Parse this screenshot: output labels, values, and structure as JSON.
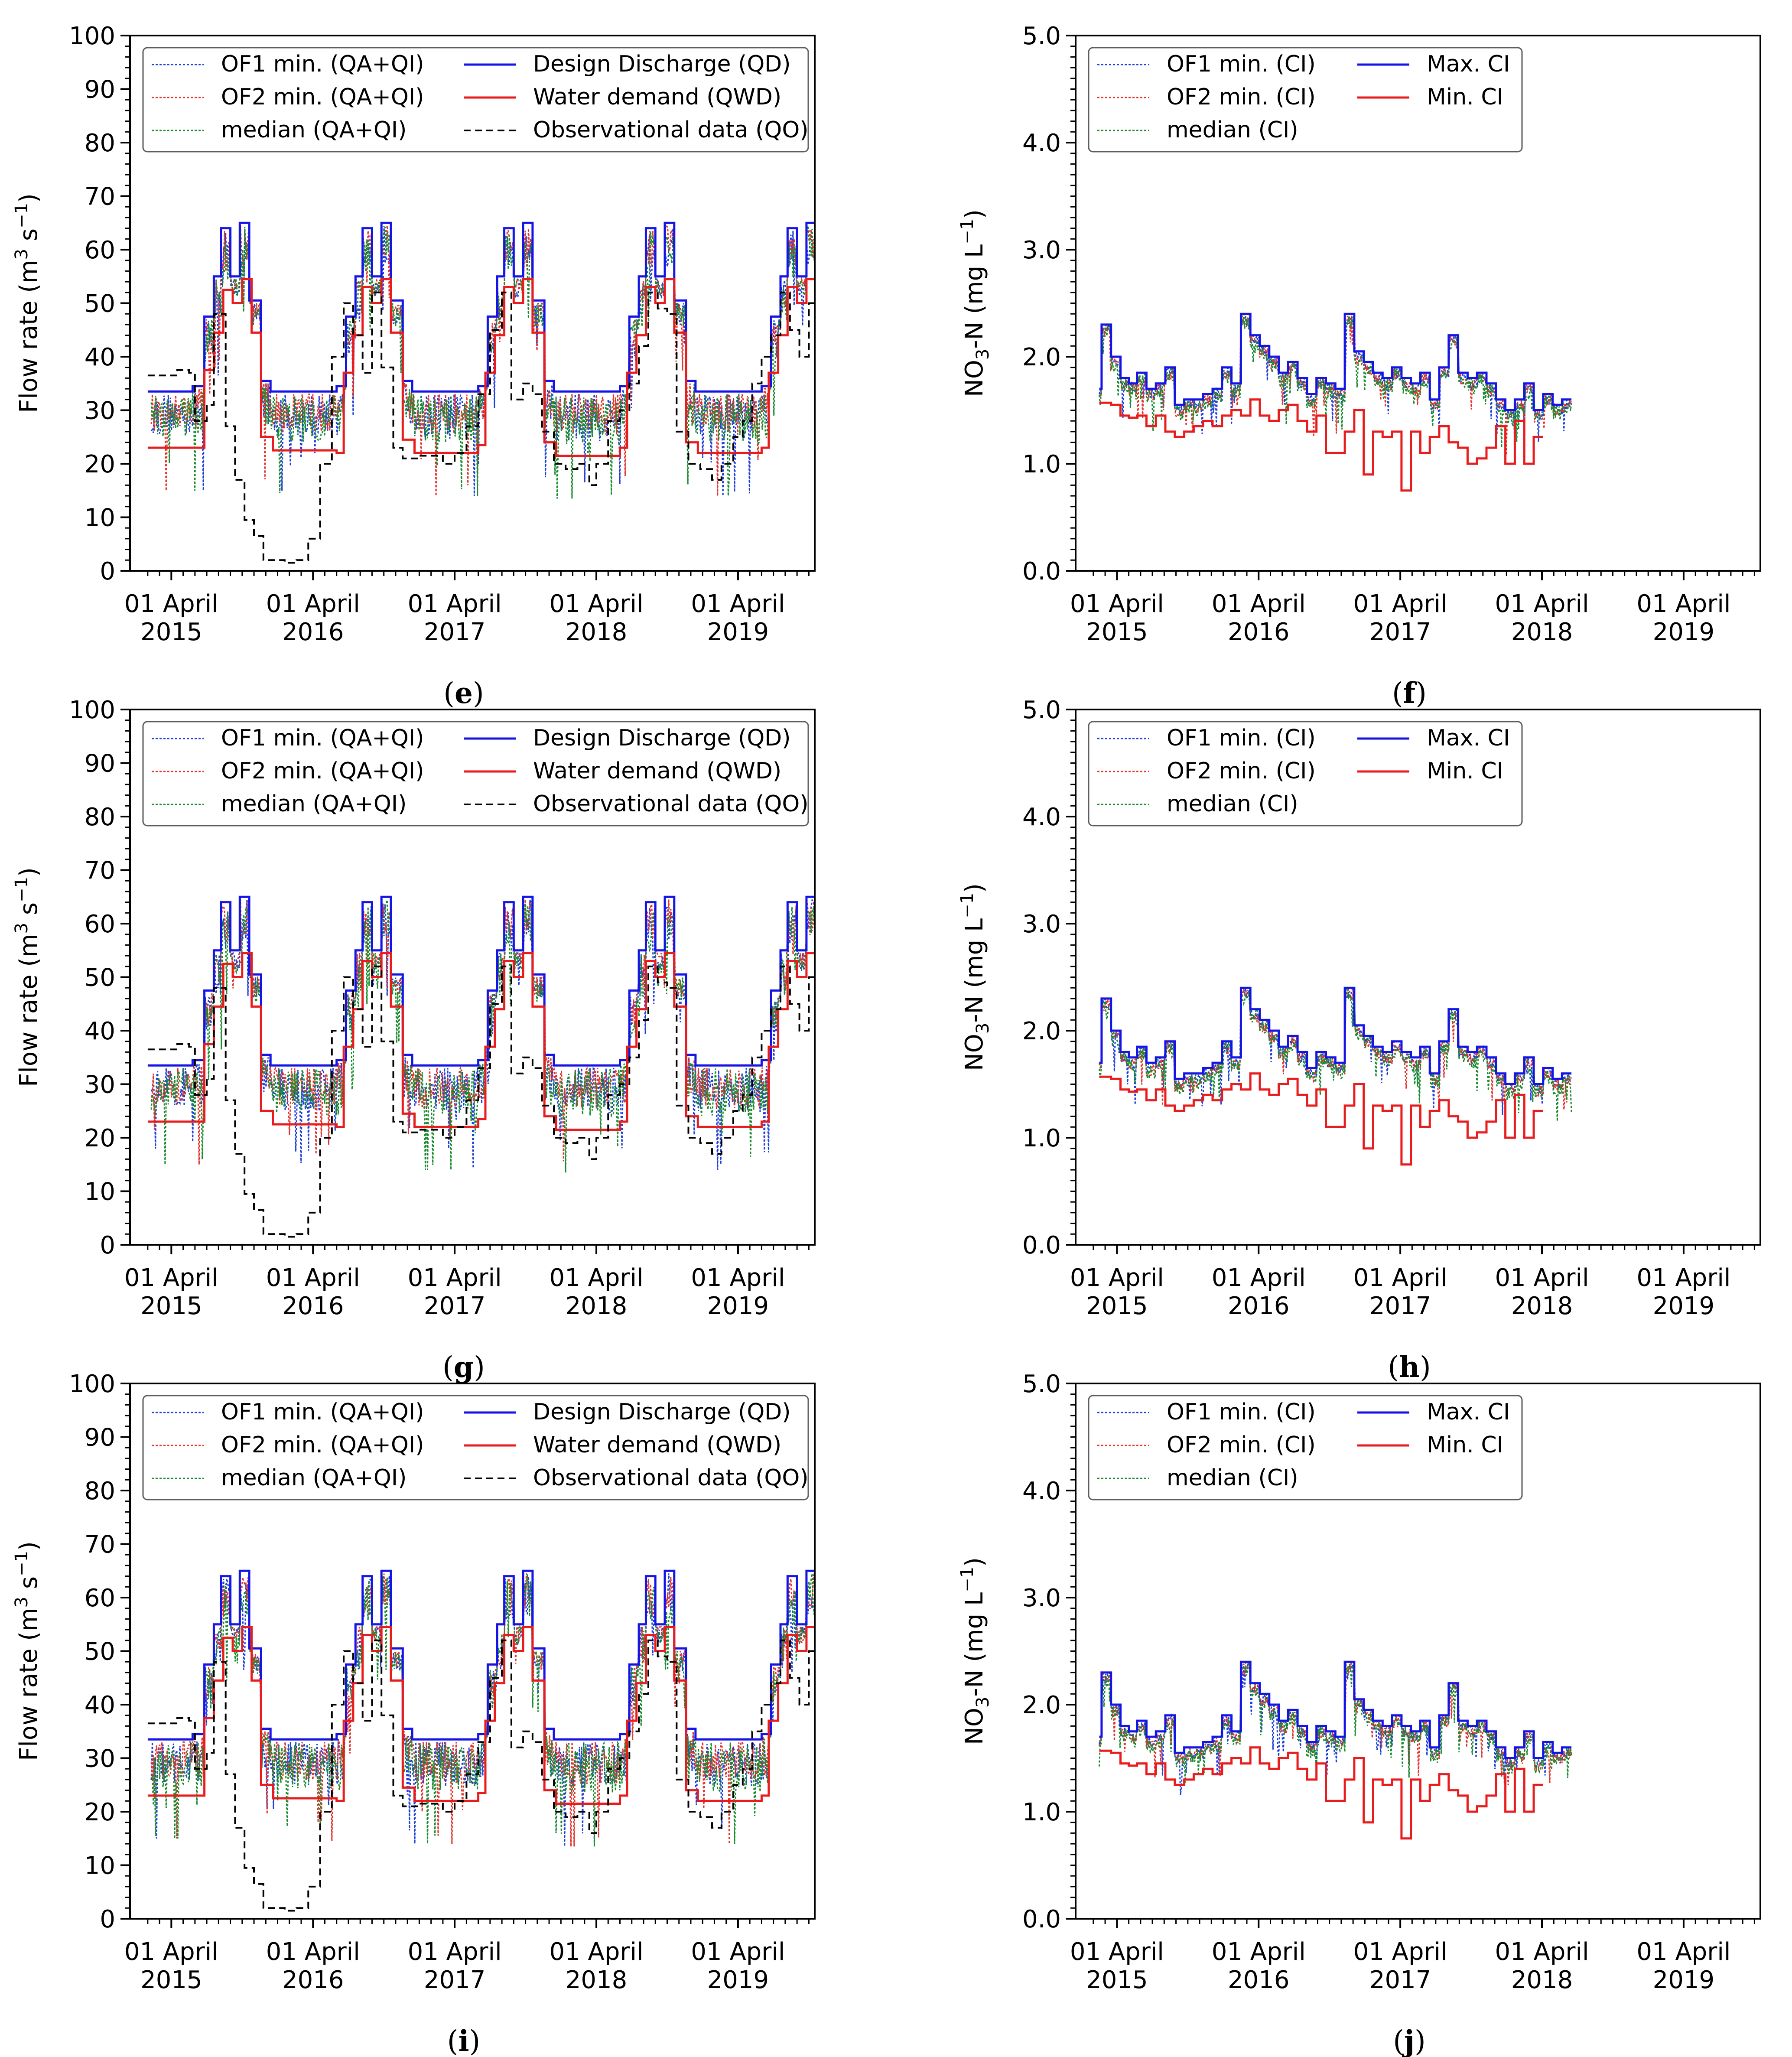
{
  "figure": {
    "colors": {
      "ofa": "#1f3fd8",
      "ofb": "#e0352e",
      "median": "#1a8c2e",
      "design": "#1414e6",
      "demand": "#e81c1c",
      "observed": "#000000"
    },
    "flow_labels": {
      "of1": "OF1 min. (QA+QI)",
      "of2": "OF2 min. (QA+QI)",
      "median": "median (QA+QI)",
      "design": "Design Discharge (QD)",
      "demand": "Water demand (QWD)",
      "observed": "Observational data (QO)"
    },
    "ci_labels": {
      "of1": "OF1 min. (CI)",
      "of2": "OF2 min. (CI)",
      "median": "median (CI)",
      "max": "Max. CI",
      "min": "Min. CI"
    }
  },
  "chart_data": [
    {
      "panel": "e",
      "type": "line",
      "kind": "flow",
      "caption": "e",
      "ylabel_main": "Flow rate (m",
      "ylabel_sup1": "3",
      "ylabel_mid": " s",
      "ylabel_sup2": "−1",
      "ylabel_end": ")",
      "ylim": [
        0,
        100
      ],
      "yticks": [
        "0",
        "10",
        "20",
        "30",
        "40",
        "50",
        "60",
        "70",
        "80",
        "90",
        "100"
      ],
      "xtick_month": "01 April",
      "xtick_years": [
        "2015",
        "2016",
        "2017",
        "2018",
        "2019"
      ],
      "xlim_months": [
        -3.5,
        54.5
      ],
      "design_steps": [
        [
          -2,
          33.5
        ],
        [
          1.8,
          34.5
        ],
        [
          2.8,
          47.5
        ],
        [
          3.6,
          55
        ],
        [
          4.2,
          64
        ],
        [
          5,
          55
        ],
        [
          5.8,
          65
        ],
        [
          6.6,
          50.5
        ],
        [
          7.6,
          35.5
        ],
        [
          8.4,
          33.5
        ],
        [
          14,
          34.5
        ],
        [
          14.8,
          47.5
        ],
        [
          15.6,
          55
        ],
        [
          16.2,
          64
        ],
        [
          17,
          55
        ],
        [
          17.8,
          65
        ],
        [
          18.6,
          50.5
        ],
        [
          19.6,
          35.5
        ],
        [
          20.4,
          33.5
        ],
        [
          26,
          34.5
        ],
        [
          26.8,
          47.5
        ],
        [
          27.6,
          55
        ],
        [
          28.2,
          64
        ],
        [
          29,
          55
        ],
        [
          29.8,
          65
        ],
        [
          30.6,
          50.5
        ],
        [
          31.6,
          35.5
        ],
        [
          32.4,
          33.5
        ],
        [
          38,
          34.5
        ],
        [
          38.8,
          47.5
        ],
        [
          39.6,
          55
        ],
        [
          40.2,
          64
        ],
        [
          41,
          55
        ],
        [
          41.8,
          65
        ],
        [
          42.6,
          50.5
        ],
        [
          43.6,
          35.5
        ],
        [
          44.4,
          33.5
        ],
        [
          50,
          34.5
        ],
        [
          50.8,
          47.5
        ],
        [
          51.6,
          55
        ],
        [
          52.2,
          64
        ],
        [
          53,
          55
        ],
        [
          53.8,
          65
        ],
        [
          54.6,
          50.5
        ],
        [
          55.6,
          35.5
        ],
        [
          56.4,
          33.5
        ],
        [
          64,
          33.5
        ]
      ],
      "demand_steps": [
        [
          -2,
          23
        ],
        [
          2.8,
          37.5
        ],
        [
          3.6,
          44.5
        ],
        [
          4.4,
          52.5
        ],
        [
          5.2,
          50
        ],
        [
          6,
          54.5
        ],
        [
          6.8,
          44.5
        ],
        [
          7.6,
          25
        ],
        [
          8.6,
          22.5
        ],
        [
          14,
          22
        ],
        [
          14.6,
          37
        ],
        [
          15.4,
          44
        ],
        [
          16.2,
          53
        ],
        [
          17,
          50
        ],
        [
          17.8,
          54.5
        ],
        [
          18.6,
          44.5
        ],
        [
          19.6,
          24.5
        ],
        [
          20.6,
          22
        ],
        [
          26,
          23.5
        ],
        [
          26.6,
          37
        ],
        [
          27.4,
          44
        ],
        [
          28.2,
          53
        ],
        [
          29,
          50
        ],
        [
          29.8,
          54.5
        ],
        [
          30.6,
          44.5
        ],
        [
          31.6,
          24
        ],
        [
          32.6,
          21.5
        ],
        [
          38,
          23
        ],
        [
          38.6,
          37
        ],
        [
          39.4,
          44
        ],
        [
          40.2,
          53
        ],
        [
          41,
          50
        ],
        [
          41.8,
          54.5
        ],
        [
          42.6,
          44.5
        ],
        [
          43.6,
          24
        ],
        [
          44.6,
          22
        ],
        [
          50,
          23
        ],
        [
          50.6,
          37
        ],
        [
          51.4,
          44
        ],
        [
          52.2,
          53
        ],
        [
          53,
          50
        ],
        [
          53.8,
          54.5
        ],
        [
          54.6,
          44.5
        ],
        [
          55.6,
          24
        ],
        [
          56.6,
          22.5
        ],
        [
          64,
          22.5
        ]
      ],
      "observed_steps": [
        [
          -2,
          36.5
        ],
        [
          0.5,
          37.5
        ],
        [
          1.5,
          37
        ],
        [
          2,
          28
        ],
        [
          3,
          31
        ],
        [
          3.6,
          48
        ],
        [
          4.6,
          27
        ],
        [
          5.4,
          17
        ],
        [
          6.2,
          9.5
        ],
        [
          7,
          6.5
        ],
        [
          7.8,
          2
        ],
        [
          9.6,
          1.5
        ],
        [
          10.6,
          2
        ],
        [
          11.6,
          6
        ],
        [
          12.6,
          20
        ],
        [
          13.6,
          40
        ],
        [
          14.6,
          50
        ],
        [
          15.4,
          44
        ],
        [
          16.2,
          37
        ],
        [
          17,
          52
        ],
        [
          17.8,
          38
        ],
        [
          18.8,
          23
        ],
        [
          19.6,
          21
        ],
        [
          21,
          21.5
        ],
        [
          23,
          20
        ],
        [
          24,
          22
        ],
        [
          25,
          27
        ],
        [
          26,
          33
        ],
        [
          27,
          45
        ],
        [
          28,
          52
        ],
        [
          28.8,
          32
        ],
        [
          29.8,
          35
        ],
        [
          30.6,
          33
        ],
        [
          31.4,
          26
        ],
        [
          32.4,
          20
        ],
        [
          33.4,
          19
        ],
        [
          34.4,
          20
        ],
        [
          35.4,
          16
        ],
        [
          36,
          20
        ],
        [
          37,
          28
        ],
        [
          38,
          30
        ],
        [
          38.8,
          35
        ],
        [
          39.6,
          42
        ],
        [
          40.4,
          52
        ],
        [
          41.2,
          49
        ],
        [
          42,
          48
        ],
        [
          42.8,
          26
        ],
        [
          43.8,
          20
        ],
        [
          44.8,
          19
        ],
        [
          45.8,
          17
        ],
        [
          46.6,
          20
        ],
        [
          47.6,
          25
        ],
        [
          48.4,
          28
        ],
        [
          49.2,
          35
        ],
        [
          50,
          40
        ],
        [
          50.8,
          44
        ],
        [
          51.6,
          52
        ],
        [
          52.4,
          45
        ],
        [
          53.2,
          40
        ],
        [
          54,
          50
        ],
        [
          54.8,
          31
        ],
        [
          55.6,
          22.5
        ],
        [
          56.2,
          22.5
        ]
      ],
      "sim_profile": "flow"
    },
    {
      "panel": "f",
      "type": "line",
      "kind": "ci",
      "caption": "f",
      "ylabel_main": "NO",
      "ylabel_sub": "3",
      "ylabel_rest": "-N (mg L",
      "ylabel_sup": "−1",
      "ylabel_end": ")",
      "ylim": [
        0,
        5
      ],
      "yticks": [
        "0.0",
        "1.0",
        "2.0",
        "3.0",
        "4.0",
        "5.0"
      ],
      "xtick_month": "01 April",
      "xtick_years": [
        "2015",
        "2016",
        "2017",
        "2018",
        "2019"
      ],
      "xlim_months": [
        -3.5,
        54.5
      ],
      "max_steps": [
        [
          -1.5,
          1.7
        ],
        [
          -1.3,
          2.3
        ],
        [
          -0.5,
          2.0
        ],
        [
          0.3,
          1.8
        ],
        [
          1,
          1.75
        ],
        [
          1.7,
          1.85
        ],
        [
          2.5,
          1.7
        ],
        [
          3.3,
          1.75
        ],
        [
          4.1,
          1.9
        ],
        [
          4.9,
          1.55
        ],
        [
          5.7,
          1.6
        ],
        [
          6.5,
          1.6
        ],
        [
          7.3,
          1.65
        ],
        [
          8.1,
          1.7
        ],
        [
          8.9,
          1.9
        ],
        [
          9.7,
          1.75
        ],
        [
          10.5,
          2.4
        ],
        [
          11.3,
          2.2
        ],
        [
          12.1,
          2.1
        ],
        [
          12.9,
          2.0
        ],
        [
          13.7,
          1.85
        ],
        [
          14.5,
          1.95
        ],
        [
          15.3,
          1.8
        ],
        [
          16.1,
          1.65
        ],
        [
          16.9,
          1.8
        ],
        [
          17.7,
          1.75
        ],
        [
          18.5,
          1.7
        ],
        [
          19.3,
          2.4
        ],
        [
          20.1,
          2.05
        ],
        [
          20.9,
          1.95
        ],
        [
          21.7,
          1.85
        ],
        [
          22.5,
          1.8
        ],
        [
          23.3,
          1.9
        ],
        [
          24.1,
          1.8
        ],
        [
          24.9,
          1.75
        ],
        [
          25.7,
          1.85
        ],
        [
          26.5,
          1.6
        ],
        [
          27.3,
          1.9
        ],
        [
          28.1,
          2.2
        ],
        [
          28.9,
          1.85
        ],
        [
          29.7,
          1.8
        ],
        [
          30.5,
          1.85
        ],
        [
          31.3,
          1.75
        ],
        [
          32.1,
          1.6
        ],
        [
          32.9,
          1.5
        ],
        [
          33.7,
          1.6
        ],
        [
          34.5,
          1.75
        ],
        [
          35.3,
          1.5
        ],
        [
          36.1,
          1.65
        ],
        [
          36.9,
          1.55
        ],
        [
          37.7,
          1.6
        ],
        [
          38.5,
          1.6
        ]
      ],
      "min_steps": [
        [
          -1.5,
          1.57
        ],
        [
          -0.5,
          1.55
        ],
        [
          0.3,
          1.45
        ],
        [
          1,
          1.43
        ],
        [
          1.7,
          1.45
        ],
        [
          2.5,
          1.35
        ],
        [
          3.3,
          1.45
        ],
        [
          4.1,
          1.3
        ],
        [
          4.9,
          1.25
        ],
        [
          5.7,
          1.3
        ],
        [
          6.5,
          1.35
        ],
        [
          7.3,
          1.4
        ],
        [
          8.1,
          1.35
        ],
        [
          8.9,
          1.45
        ],
        [
          9.7,
          1.5
        ],
        [
          10.5,
          1.45
        ],
        [
          11.3,
          1.6
        ],
        [
          12.1,
          1.45
        ],
        [
          12.9,
          1.4
        ],
        [
          13.7,
          1.5
        ],
        [
          14.5,
          1.55
        ],
        [
          15.3,
          1.4
        ],
        [
          16.1,
          1.3
        ],
        [
          16.9,
          1.45
        ],
        [
          17.7,
          1.1
        ],
        [
          18.5,
          1.1
        ],
        [
          19.3,
          1.3
        ],
        [
          20.1,
          1.5
        ],
        [
          20.9,
          0.9
        ],
        [
          21.7,
          1.3
        ],
        [
          22.5,
          1.25
        ],
        [
          23.3,
          1.3
        ],
        [
          24.1,
          0.75
        ],
        [
          24.9,
          1.3
        ],
        [
          25.7,
          1.1
        ],
        [
          26.5,
          1.25
        ],
        [
          27.3,
          1.35
        ],
        [
          28.1,
          1.2
        ],
        [
          28.9,
          1.15
        ],
        [
          29.7,
          1.0
        ],
        [
          30.5,
          1.05
        ],
        [
          31.3,
          1.15
        ],
        [
          32.1,
          1.35
        ],
        [
          32.9,
          1.0
        ],
        [
          33.7,
          1.4
        ],
        [
          34.5,
          1.0
        ],
        [
          35.3,
          1.25
        ],
        [
          36.1,
          1.25
        ]
      ],
      "sim_profile": "ci"
    },
    {
      "panel": "g",
      "type": "line",
      "kind": "flow",
      "caption": "g",
      "ylabel_main": "Flow rate (m",
      "ylabel_sup1": "3",
      "ylabel_mid": " s",
      "ylabel_sup2": "−1",
      "ylabel_end": ")",
      "ylim": [
        0,
        100
      ],
      "yticks": [
        "0",
        "10",
        "20",
        "30",
        "40",
        "50",
        "60",
        "70",
        "80",
        "90",
        "100"
      ],
      "xtick_month": "01 April",
      "xtick_years": [
        "2015",
        "2016",
        "2017",
        "2018",
        "2019"
      ],
      "xlim_months": [
        -3.5,
        54.5
      ],
      "same_as": "e"
    },
    {
      "panel": "h",
      "type": "line",
      "kind": "ci",
      "caption": "h",
      "ylabel_main": "NO",
      "ylabel_sub": "3",
      "ylabel_rest": "-N (mg L",
      "ylabel_sup": "−1",
      "ylabel_end": ")",
      "ylim": [
        0,
        5
      ],
      "yticks": [
        "0.0",
        "1.0",
        "2.0",
        "3.0",
        "4.0",
        "5.0"
      ],
      "xtick_month": "01 April",
      "xtick_years": [
        "2015",
        "2016",
        "2017",
        "2018",
        "2019"
      ],
      "xlim_months": [
        -3.5,
        54.5
      ],
      "same_as": "f"
    },
    {
      "panel": "i",
      "type": "line",
      "kind": "flow",
      "caption": "i",
      "ylabel_main": "Flow rate (m",
      "ylabel_sup1": "3",
      "ylabel_mid": " s",
      "ylabel_sup2": "−1",
      "ylabel_end": ")",
      "ylim": [
        0,
        100
      ],
      "yticks": [
        "0",
        "10",
        "20",
        "30",
        "40",
        "50",
        "60",
        "70",
        "80",
        "90",
        "100"
      ],
      "xtick_month": "01 April",
      "xtick_years": [
        "2015",
        "2016",
        "2017",
        "2018",
        "2019"
      ],
      "xlim_months": [
        -3.5,
        54.5
      ],
      "same_as": "e"
    },
    {
      "panel": "j",
      "type": "line",
      "kind": "ci",
      "caption": "j",
      "ylabel_main": "NO",
      "ylabel_sub": "3",
      "ylabel_rest": "-N (mg L",
      "ylabel_sup": "−1",
      "ylabel_end": ")",
      "ylim": [
        0,
        5
      ],
      "yticks": [
        "0.0",
        "1.0",
        "2.0",
        "3.0",
        "4.0",
        "5.0"
      ],
      "xtick_month": "01 April",
      "xtick_years": [
        "2015",
        "2016",
        "2017",
        "2018",
        "2019"
      ],
      "xlim_months": [
        -3.5,
        54.5
      ],
      "same_as": "f"
    }
  ]
}
